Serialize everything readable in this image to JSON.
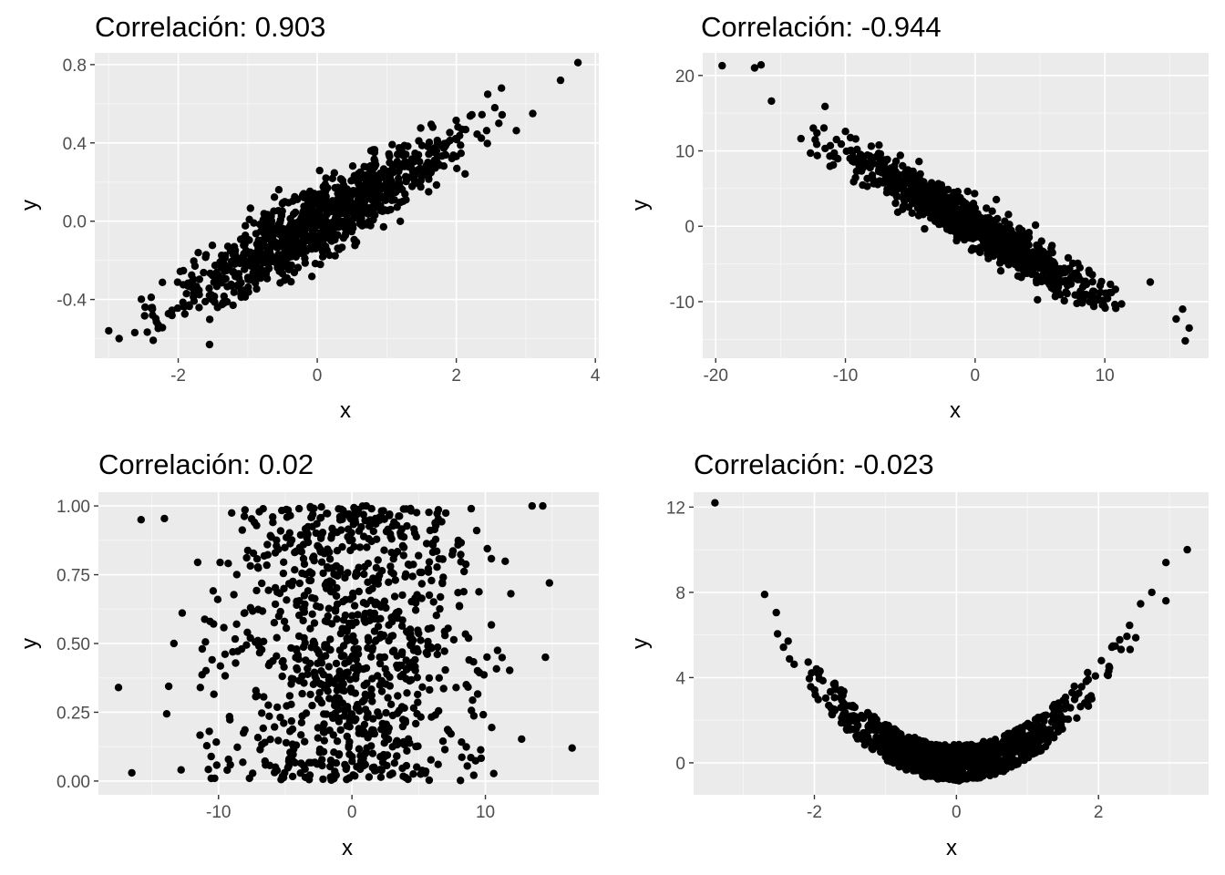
{
  "colors": {
    "panel_background": "#ebebeb",
    "grid_major": "#ffffff",
    "grid_minor": "#f5f5f5",
    "point": "#000000",
    "tick": "#333333",
    "text": "#000000",
    "tick_text": "#4d4d4d"
  },
  "chart_data": [
    {
      "type": "scatter",
      "title": "Correlación: 0.903",
      "xlabel": "x",
      "ylabel": "y",
      "xlim": [
        -3.2,
        4.05
      ],
      "ylim": [
        -0.7,
        0.86
      ],
      "xticks": [
        -2,
        0,
        2,
        4
      ],
      "xtick_labels": [
        "-2",
        "0",
        "2",
        "4"
      ],
      "yticks": [
        -0.4,
        0.0,
        0.4,
        0.8
      ],
      "ytick_labels": [
        "-0.4",
        "0.0",
        "0.4",
        "0.8"
      ],
      "grid": true,
      "n_points": 1000,
      "visible_extreme_points": [
        [
          3.75,
          0.81
        ],
        [
          3.5,
          0.72
        ],
        [
          3.1,
          0.55
        ],
        [
          -3.0,
          -0.56
        ],
        [
          -2.85,
          -0.6
        ],
        [
          -1.55,
          -0.63
        ],
        [
          2.65,
          0.68
        ]
      ],
      "description_of_distribution": "points spread along a line y ≈ 0.2·x"
    },
    {
      "type": "scatter",
      "title": "Correlación: -0.944",
      "xlabel": "x",
      "ylabel": "y",
      "xlim": [
        -21,
        18
      ],
      "ylim": [
        -17.5,
        23
      ],
      "xticks": [
        -20,
        -10,
        0,
        10
      ],
      "xtick_labels": [
        "-20",
        "-10",
        "0",
        "10"
      ],
      "yticks": [
        -10,
        0,
        10,
        20
      ],
      "ytick_labels": [
        "-10",
        "0",
        "10",
        "20"
      ],
      "grid": true,
      "n_points": 1000,
      "visible_extreme_points": [
        [
          -19.5,
          21.3
        ],
        [
          -17,
          21.0
        ],
        [
          -16.5,
          21.4
        ],
        [
          -15.7,
          16.6
        ],
        [
          16.2,
          -15.2
        ],
        [
          16.5,
          -13.5
        ],
        [
          16.0,
          -11.0
        ],
        [
          15.5,
          -12.3
        ],
        [
          13.5,
          -7.4
        ]
      ],
      "description_of_distribution": "points spread along a line y ≈ -1·x"
    },
    {
      "type": "scatter",
      "title": "Correlación: 0.02",
      "xlabel": "x",
      "ylabel": "y",
      "xlim": [
        -19,
        18.5
      ],
      "ylim": [
        -0.05,
        1.05
      ],
      "xticks": [
        -10,
        0,
        10
      ],
      "xtick_labels": [
        "-10",
        "0",
        "10"
      ],
      "yticks": [
        0.0,
        0.25,
        0.5,
        0.75,
        1.0
      ],
      "ytick_labels": [
        "0.00",
        "0.25",
        "0.50",
        "0.75",
        "1.00"
      ],
      "grid": true,
      "n_points": 1000,
      "visible_extreme_points": [
        [
          -17.5,
          0.34
        ],
        [
          -16.5,
          0.03
        ],
        [
          -15.8,
          0.95
        ],
        [
          16.5,
          0.12
        ],
        [
          14.8,
          0.72
        ],
        [
          14.5,
          0.45
        ],
        [
          13.5,
          1.0
        ],
        [
          14.3,
          1.0
        ]
      ],
      "description_of_distribution": "x roughly normal around 0, y uniform between 0 and 1"
    },
    {
      "type": "scatter",
      "title": "Correlación: -0.023",
      "xlabel": "x",
      "ylabel": "y",
      "xlim": [
        -3.7,
        3.55
      ],
      "ylim": [
        -1.5,
        12.7
      ],
      "xticks": [
        -2,
        0,
        2
      ],
      "xtick_labels": [
        "-2",
        "0",
        "2"
      ],
      "yticks": [
        0,
        4,
        8,
        12
      ],
      "ytick_labels": [
        "0",
        "4",
        "8",
        "12"
      ],
      "grid": true,
      "n_points": 1000,
      "visible_extreme_points": [
        [
          -3.4,
          12.2
        ],
        [
          3.25,
          10.0
        ],
        [
          2.95,
          9.4
        ],
        [
          2.95,
          7.6
        ],
        [
          -2.7,
          7.9
        ],
        [
          2.75,
          8.0
        ]
      ],
      "description_of_distribution": "parabolic band y ≈ x²"
    }
  ]
}
